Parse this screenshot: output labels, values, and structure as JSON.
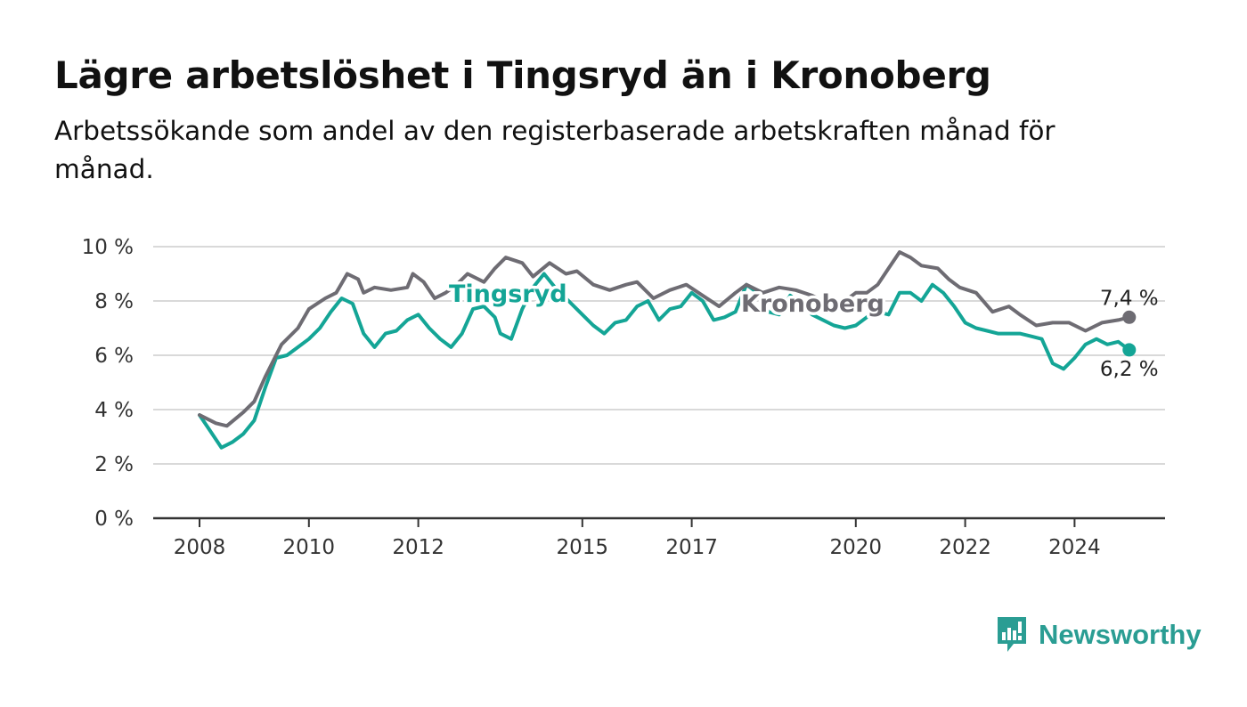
{
  "title": "Lägre arbetslöshet i Tingsryd än i Kronoberg",
  "subtitle": "Arbetssökande som andel av den registerbaserade arbetskraften månad för månad.",
  "brand": {
    "name": "Newsworthy",
    "icon": "bar-chart-speech-bubble-icon"
  },
  "colors": {
    "tingsryd": "#14a596",
    "kronoberg": "#6e6c73",
    "grid": "#d9d9d9",
    "axis": "#333333",
    "brand": "#2a9d93"
  },
  "chart_data": {
    "type": "line",
    "title": "Lägre arbetslöshet i Tingsryd än i Kronoberg",
    "subtitle": "Arbetssökande som andel av den registerbaserade arbetskraften månad för månad.",
    "xlabel": "",
    "ylabel": "",
    "xlim": [
      2007.2,
      2025.7
    ],
    "ylim": [
      0,
      10
    ],
    "x_ticks": [
      2008,
      2010,
      2012,
      2015,
      2017,
      2020,
      2022,
      2024
    ],
    "x_tick_labels": [
      "2008",
      "2010",
      "2012",
      "2015",
      "2017",
      "2020",
      "2022",
      "2024"
    ],
    "y_ticks": [
      0,
      2,
      4,
      6,
      8,
      10
    ],
    "y_tick_labels": [
      "0 %",
      "2 %",
      "4 %",
      "6 %",
      "8 %",
      "10 %"
    ],
    "grid": true,
    "legend": "inline labels",
    "series": [
      {
        "name": "Kronoberg",
        "color": "#6e6c73",
        "end_label": "7,4 %",
        "points": [
          [
            2008.0,
            3.8
          ],
          [
            2008.3,
            3.5
          ],
          [
            2008.5,
            3.4
          ],
          [
            2008.8,
            3.9
          ],
          [
            2009.0,
            4.3
          ],
          [
            2009.2,
            5.2
          ],
          [
            2009.5,
            6.4
          ],
          [
            2009.8,
            7.0
          ],
          [
            2010.0,
            7.7
          ],
          [
            2010.3,
            8.1
          ],
          [
            2010.5,
            8.3
          ],
          [
            2010.7,
            9.0
          ],
          [
            2010.9,
            8.8
          ],
          [
            2011.0,
            8.3
          ],
          [
            2011.2,
            8.5
          ],
          [
            2011.5,
            8.4
          ],
          [
            2011.8,
            8.5
          ],
          [
            2011.9,
            9.0
          ],
          [
            2012.1,
            8.7
          ],
          [
            2012.3,
            8.1
          ],
          [
            2012.5,
            8.3
          ],
          [
            2012.7,
            8.6
          ],
          [
            2012.9,
            9.0
          ],
          [
            2013.2,
            8.7
          ],
          [
            2013.4,
            9.2
          ],
          [
            2013.6,
            9.6
          ],
          [
            2013.9,
            9.4
          ],
          [
            2014.1,
            8.9
          ],
          [
            2014.4,
            9.4
          ],
          [
            2014.7,
            9.0
          ],
          [
            2014.9,
            9.1
          ],
          [
            2015.2,
            8.6
          ],
          [
            2015.5,
            8.4
          ],
          [
            2015.8,
            8.6
          ],
          [
            2016.0,
            8.7
          ],
          [
            2016.3,
            8.1
          ],
          [
            2016.6,
            8.4
          ],
          [
            2016.9,
            8.6
          ],
          [
            2017.2,
            8.2
          ],
          [
            2017.5,
            7.8
          ],
          [
            2017.8,
            8.3
          ],
          [
            2018.0,
            8.6
          ],
          [
            2018.3,
            8.3
          ],
          [
            2018.6,
            8.5
          ],
          [
            2018.9,
            8.4
          ],
          [
            2019.2,
            8.2
          ],
          [
            2019.5,
            7.9
          ],
          [
            2019.8,
            8.0
          ],
          [
            2020.0,
            8.3
          ],
          [
            2020.2,
            8.3
          ],
          [
            2020.4,
            8.6
          ],
          [
            2020.6,
            9.2
          ],
          [
            2020.8,
            9.8
          ],
          [
            2021.0,
            9.6
          ],
          [
            2021.2,
            9.3
          ],
          [
            2021.5,
            9.2
          ],
          [
            2021.7,
            8.8
          ],
          [
            2021.9,
            8.5
          ],
          [
            2022.2,
            8.3
          ],
          [
            2022.5,
            7.6
          ],
          [
            2022.8,
            7.8
          ],
          [
            2023.0,
            7.5
          ],
          [
            2023.3,
            7.1
          ],
          [
            2023.6,
            7.2
          ],
          [
            2023.9,
            7.2
          ],
          [
            2024.2,
            6.9
          ],
          [
            2024.5,
            7.2
          ],
          [
            2024.8,
            7.3
          ],
          [
            2025.0,
            7.4
          ]
        ]
      },
      {
        "name": "Tingsryd",
        "color": "#14a596",
        "end_label": "6,2 %",
        "points": [
          [
            2008.0,
            3.8
          ],
          [
            2008.2,
            3.2
          ],
          [
            2008.4,
            2.6
          ],
          [
            2008.6,
            2.8
          ],
          [
            2008.8,
            3.1
          ],
          [
            2009.0,
            3.6
          ],
          [
            2009.2,
            4.8
          ],
          [
            2009.4,
            5.9
          ],
          [
            2009.6,
            6.0
          ],
          [
            2009.8,
            6.3
          ],
          [
            2010.0,
            6.6
          ],
          [
            2010.2,
            7.0
          ],
          [
            2010.4,
            7.6
          ],
          [
            2010.6,
            8.1
          ],
          [
            2010.8,
            7.9
          ],
          [
            2011.0,
            6.8
          ],
          [
            2011.2,
            6.3
          ],
          [
            2011.4,
            6.8
          ],
          [
            2011.6,
            6.9
          ],
          [
            2011.8,
            7.3
          ],
          [
            2012.0,
            7.5
          ],
          [
            2012.2,
            7.0
          ],
          [
            2012.4,
            6.6
          ],
          [
            2012.6,
            6.3
          ],
          [
            2012.8,
            6.8
          ],
          [
            2013.0,
            7.7
          ],
          [
            2013.2,
            7.8
          ],
          [
            2013.4,
            7.4
          ],
          [
            2013.5,
            6.8
          ],
          [
            2013.7,
            6.6
          ],
          [
            2013.9,
            7.7
          ],
          [
            2014.1,
            8.5
          ],
          [
            2014.3,
            9.0
          ],
          [
            2014.5,
            8.5
          ],
          [
            2014.7,
            8.1
          ],
          [
            2015.0,
            7.5
          ],
          [
            2015.2,
            7.1
          ],
          [
            2015.4,
            6.8
          ],
          [
            2015.6,
            7.2
          ],
          [
            2015.8,
            7.3
          ],
          [
            2016.0,
            7.8
          ],
          [
            2016.2,
            8.0
          ],
          [
            2016.4,
            7.3
          ],
          [
            2016.6,
            7.7
          ],
          [
            2016.8,
            7.8
          ],
          [
            2017.0,
            8.3
          ],
          [
            2017.2,
            8.0
          ],
          [
            2017.4,
            7.3
          ],
          [
            2017.6,
            7.4
          ],
          [
            2017.8,
            7.6
          ],
          [
            2018.0,
            8.6
          ],
          [
            2018.2,
            8.3
          ],
          [
            2018.4,
            7.6
          ],
          [
            2018.6,
            7.5
          ],
          [
            2018.8,
            8.2
          ],
          [
            2019.0,
            7.9
          ],
          [
            2019.2,
            7.5
          ],
          [
            2019.4,
            7.3
          ],
          [
            2019.6,
            7.1
          ],
          [
            2019.8,
            7.0
          ],
          [
            2020.0,
            7.1
          ],
          [
            2020.2,
            7.4
          ],
          [
            2020.4,
            7.6
          ],
          [
            2020.6,
            7.5
          ],
          [
            2020.8,
            8.3
          ],
          [
            2021.0,
            8.3
          ],
          [
            2021.2,
            8.0
          ],
          [
            2021.4,
            8.6
          ],
          [
            2021.6,
            8.3
          ],
          [
            2021.8,
            7.8
          ],
          [
            2022.0,
            7.2
          ],
          [
            2022.2,
            7.0
          ],
          [
            2022.4,
            6.9
          ],
          [
            2022.6,
            6.8
          ],
          [
            2022.8,
            6.8
          ],
          [
            2023.0,
            6.8
          ],
          [
            2023.2,
            6.7
          ],
          [
            2023.4,
            6.6
          ],
          [
            2023.6,
            5.7
          ],
          [
            2023.8,
            5.5
          ],
          [
            2024.0,
            5.9
          ],
          [
            2024.2,
            6.4
          ],
          [
            2024.4,
            6.6
          ],
          [
            2024.6,
            6.4
          ],
          [
            2024.8,
            6.5
          ],
          [
            2025.0,
            6.2
          ]
        ]
      }
    ]
  }
}
